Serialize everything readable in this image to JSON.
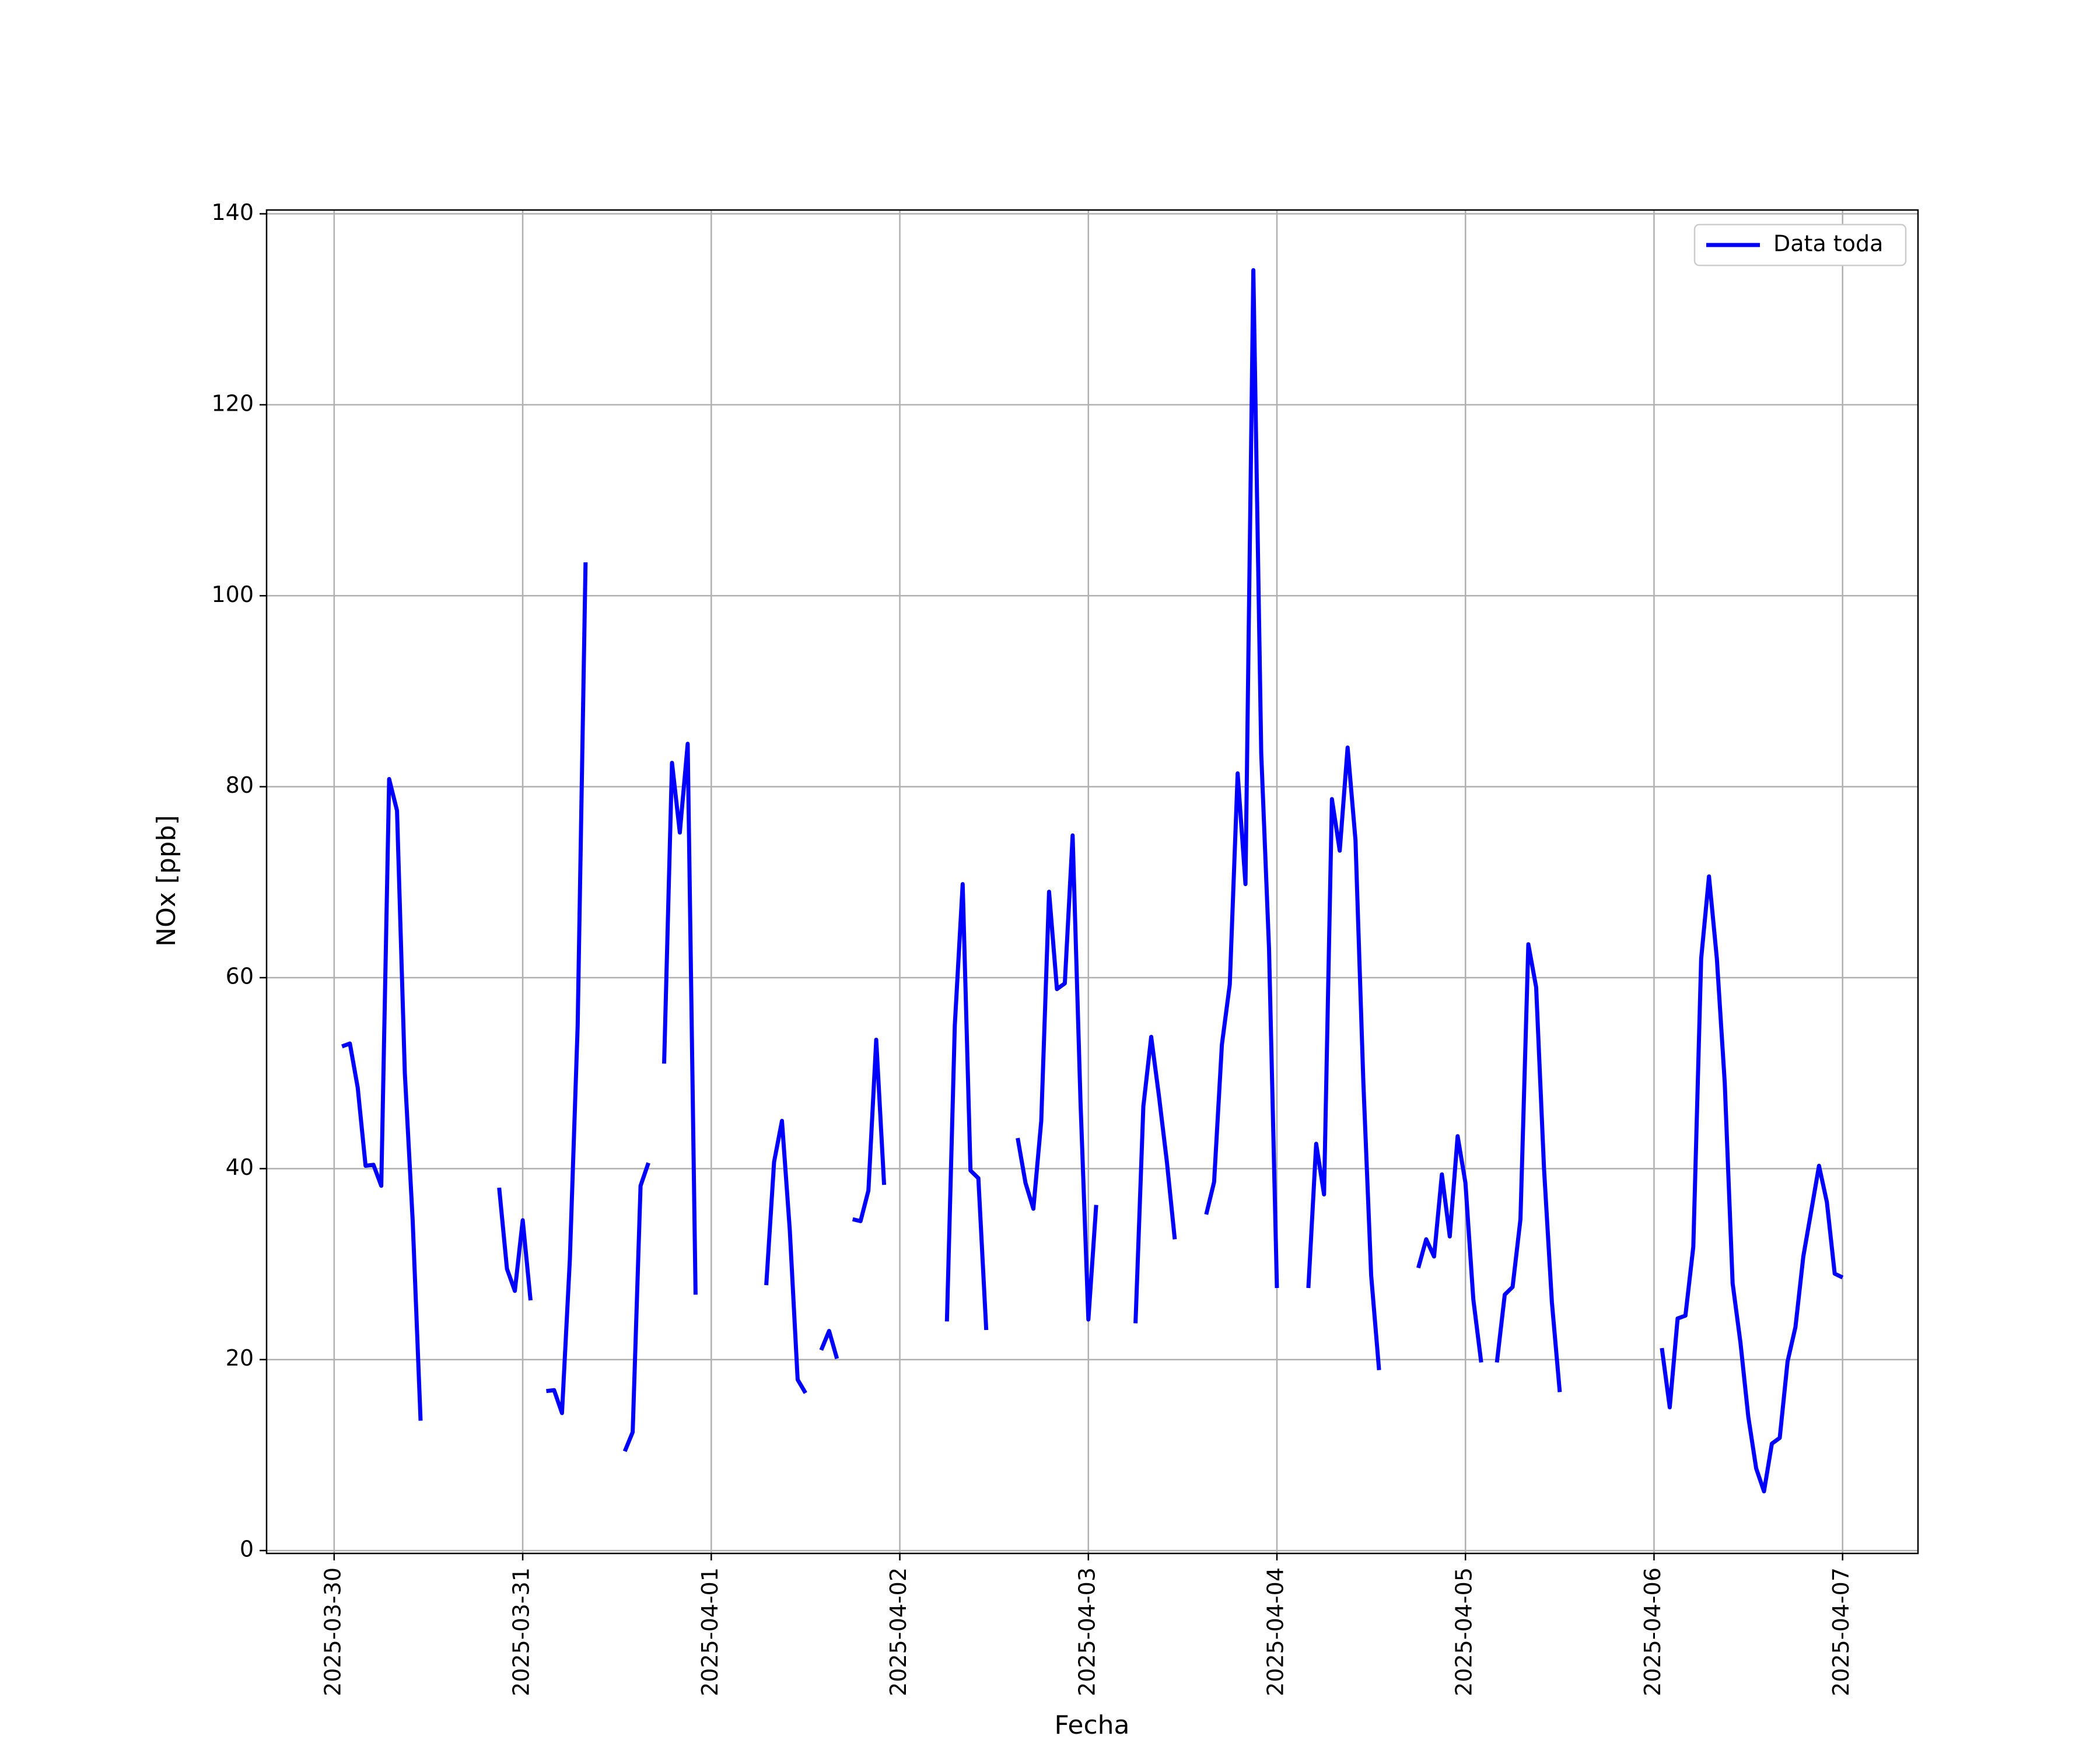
{
  "chart_data": {
    "type": "line",
    "x_label": "Fecha",
    "y_label": "NOx [ppb]",
    "x": [
      1,
      2,
      3,
      4,
      5,
      6,
      7,
      8,
      9,
      10,
      11,
      12,
      21,
      22,
      23,
      24,
      25,
      26,
      27,
      28,
      29,
      30,
      31,
      32,
      33,
      37,
      38,
      39,
      40,
      41,
      42,
      43,
      44,
      45,
      46,
      47,
      55,
      56,
      57,
      58,
      59,
      60,
      61,
      62,
      63,
      64,
      65,
      66,
      67,
      68,
      69,
      70,
      71,
      78,
      79,
      80,
      81,
      82,
      83,
      84,
      87,
      88,
      89,
      90,
      91,
      92,
      93,
      94,
      95,
      96,
      97,
      98,
      102,
      103,
      104,
      105,
      106,
      107,
      108,
      111,
      112,
      113,
      114,
      115,
      116,
      117,
      118,
      119,
      120,
      121,
      124,
      125,
      126,
      127,
      128,
      129,
      130,
      131,
      132,
      133,
      134,
      138,
      139,
      140,
      141,
      142,
      143,
      144,
      145,
      146,
      147,
      148,
      149,
      150,
      151,
      152,
      153,
      154,
      155,
      156,
      157,
      169,
      170,
      171,
      172,
      173,
      174,
      175,
      176,
      177,
      178,
      179,
      180,
      181,
      182,
      183,
      184,
      185,
      186,
      187,
      188,
      189,
      190,
      191,
      192
    ],
    "series": [
      {
        "name": "Data toda",
        "color": "#0000ff",
        "values": [
          52.8,
          53.1,
          48.5,
          40.3,
          40.4,
          38.2,
          80.8,
          77.5,
          50,
          34.5,
          13.6,
          null,
          38,
          29.5,
          27.2,
          34.6,
          26.2,
          null,
          16.7,
          16.8,
          14.4,
          30.5,
          55,
          103.5,
          null,
          10.4,
          12.4,
          38.2,
          40.6,
          null,
          51,
          82.5,
          75.2,
          84.5,
          26.8,
          null,
          27.8,
          40.7,
          45,
          33.5,
          17.9,
          16.5,
          null,
          21,
          23,
          20.1,
          null,
          34.7,
          34.5,
          37.7,
          53.5,
          38.3,
          null,
          24,
          55,
          69.8,
          39.8,
          39,
          23.1,
          null,
          43.2,
          38.5,
          35.8,
          45,
          69,
          58.8,
          59.4,
          74.9,
          47,
          24.2,
          36.2,
          null,
          23.8,
          46.5,
          53.8,
          47.5,
          40.7,
          32.6,
          null,
          35.2,
          38.6,
          53,
          59.3,
          81.4,
          69.8,
          134.1,
          83.5,
          63,
          27.5,
          null,
          27.5,
          42.6,
          37.3,
          78.7,
          73.3,
          84.1,
          74.4,
          49,
          28.8,
          18.9,
          null,
          29.6,
          32.6,
          30.8,
          39.4,
          32.9,
          43.4,
          38.5,
          26.3,
          19.7,
          null,
          19.7,
          26.8,
          27.6,
          34.7,
          63.5,
          59,
          40,
          26,
          16.6,
          null,
          21.2,
          15,
          24.3,
          24.6,
          31.8,
          62,
          70.6,
          62,
          49,
          28,
          21.8,
          14,
          8.6,
          6.2,
          11.2,
          11.8,
          19.8,
          23.4,
          30.8,
          35.5,
          40.3,
          36.5,
          29,
          28.6
        ]
      }
    ],
    "xlim": [
      -8.6,
      201.6
    ],
    "ylim": [
      -0.3,
      140.4
    ],
    "xticks": [
      {
        "value": 0,
        "label": "2025-03-30"
      },
      {
        "value": 24,
        "label": "2025-03-31"
      },
      {
        "value": 48,
        "label": "2025-04-01"
      },
      {
        "value": 72,
        "label": "2025-04-02"
      },
      {
        "value": 96,
        "label": "2025-04-03"
      },
      {
        "value": 120,
        "label": "2025-04-04"
      },
      {
        "value": 144,
        "label": "2025-04-05"
      },
      {
        "value": 168,
        "label": "2025-04-06"
      },
      {
        "value": 192,
        "label": "2025-04-07"
      }
    ],
    "yticks": [
      0,
      20,
      40,
      60,
      80,
      100,
      120,
      140
    ],
    "grid": true,
    "legend": "upper right"
  }
}
